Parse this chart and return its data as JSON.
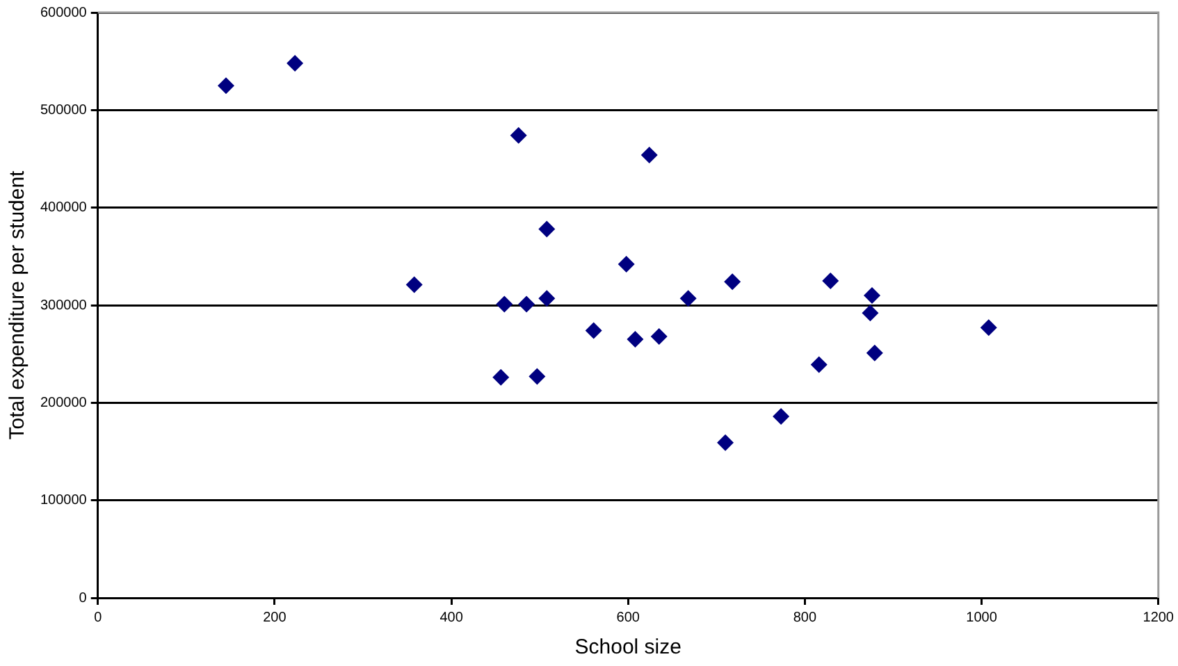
{
  "chart_data": {
    "type": "scatter",
    "xlabel": "School size",
    "ylabel": "Total expenditure per student",
    "xlim": [
      0,
      1200
    ],
    "xticks": [
      0,
      200,
      400,
      600,
      800,
      1000,
      1200
    ],
    "ylim": [
      0,
      600000
    ],
    "yticks": [
      0,
      100000,
      200000,
      300000,
      400000,
      500000,
      600000
    ],
    "grid": "y",
    "marker": "diamond",
    "legend": false,
    "series": [
      {
        "color": "#000080",
        "x": [
          145,
          223,
          358,
          476,
          460,
          456,
          485,
          497,
          508,
          508,
          561,
          598,
          608,
          624,
          635,
          668,
          710,
          718,
          773,
          816,
          829,
          876,
          874,
          879,
          1008
        ],
        "values": [
          525000,
          548000,
          321000,
          474000,
          301000,
          226000,
          301000,
          227000,
          378000,
          307000,
          274000,
          342000,
          265000,
          454000,
          268000,
          307000,
          159000,
          324000,
          186000,
          239000,
          325000,
          310000,
          292000,
          251000,
          277000
        ]
      }
    ]
  }
}
